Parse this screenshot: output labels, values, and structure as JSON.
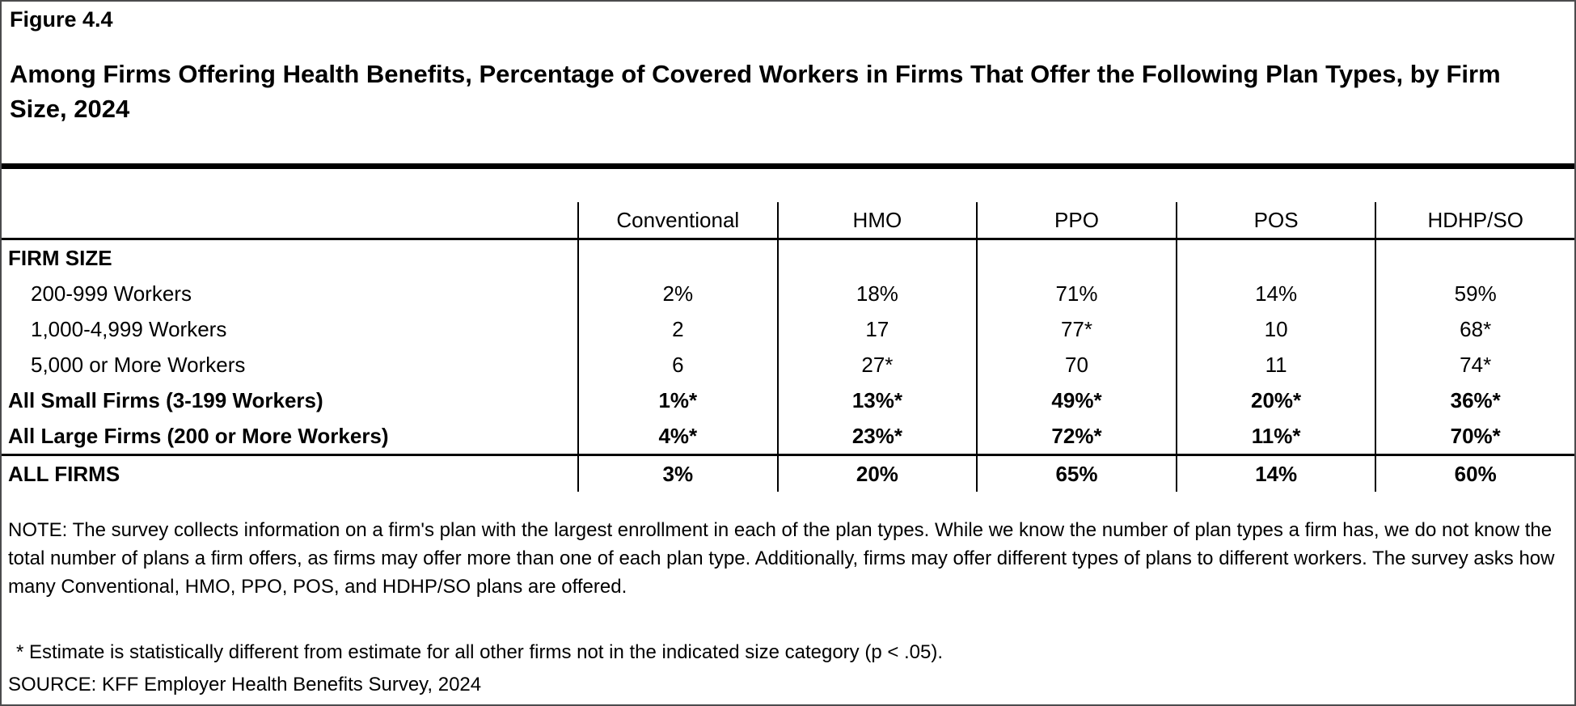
{
  "figure_label": "Figure 4.4",
  "title": "Among Firms Offering Health Benefits, Percentage of Covered Workers in Firms That Offer the Following Plan Types, by Firm Size, 2024",
  "chart_data": {
    "type": "table",
    "title": "Among Firms Offering Health Benefits, Percentage of Covered Workers in Firms That Offer the Following Plan Types, by Firm Size, 2024",
    "columns": [
      "Conventional",
      "HMO",
      "PPO",
      "POS",
      "HDHP/SO"
    ],
    "section_header": "FIRM SIZE",
    "rows": [
      {
        "label": "200-999 Workers",
        "values": [
          "2%",
          "18%",
          "71%",
          "14%",
          "59%"
        ]
      },
      {
        "label": "1,000-4,999 Workers",
        "values": [
          "2",
          "17",
          "77*",
          "10",
          "68*"
        ]
      },
      {
        "label": "5,000 or More Workers",
        "values": [
          "6",
          "27*",
          "70",
          "11",
          "74*"
        ]
      },
      {
        "label": "All Small Firms (3-199 Workers)",
        "values": [
          "1%*",
          "13%*",
          "49%*",
          "20%*",
          "36%*"
        ]
      },
      {
        "label": "All Large Firms (200 or More Workers)",
        "values": [
          "4%*",
          "23%*",
          "72%*",
          "11%*",
          "70%*"
        ]
      }
    ],
    "total_row": {
      "label": "ALL FIRMS",
      "values": [
        "3%",
        "20%",
        "65%",
        "14%",
        "60%"
      ]
    }
  },
  "note": "NOTE: The survey collects information on a firm's plan with the largest enrollment in each of the plan types. While we know the number of plan types a firm has, we do not know the total number of plans a firm offers, as firms may offer more than one of each plan type. Additionally, firms may offer different types of plans to different workers. The survey asks how many Conventional, HMO, PPO, POS, and HDHP/SO plans are offered.",
  "footnote": "* Estimate is statistically different from estimate for all other firms not in the indicated size category (p < .05).",
  "source": "SOURCE: KFF Employer Health Benefits Survey, 2024"
}
